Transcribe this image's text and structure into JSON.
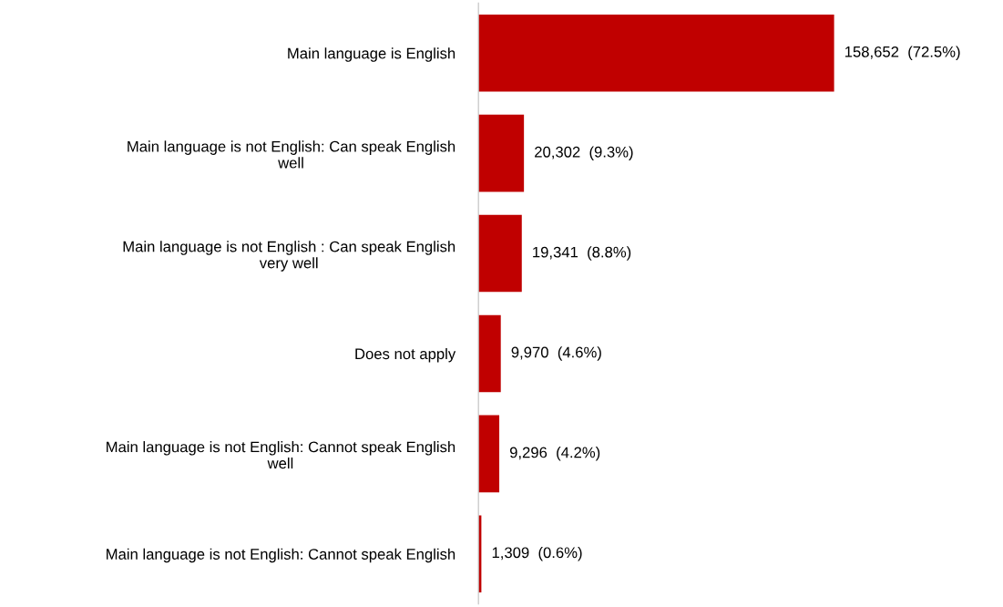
{
  "chart_data": {
    "type": "bar",
    "orientation": "horizontal",
    "categories": [
      "Main language is English",
      "Main language is not English: Can speak English\nwell",
      "Main language is not English : Can speak English\nvery well",
      "Does not apply",
      "Main language is not English: Cannot speak English\nwell",
      "Main language is not English: Cannot speak English"
    ],
    "values": [
      158652,
      20302,
      19341,
      9970,
      9296,
      1309
    ],
    "value_labels": [
      "158,652  (72.5%)",
      "20,302  (9.3%)",
      "19,341  (8.8%)",
      "9,970  (4.6%)",
      "9,296  (4.2%)",
      "1,309  (0.6%)"
    ],
    "color": "#c00000",
    "grid": false,
    "legend": false
  }
}
